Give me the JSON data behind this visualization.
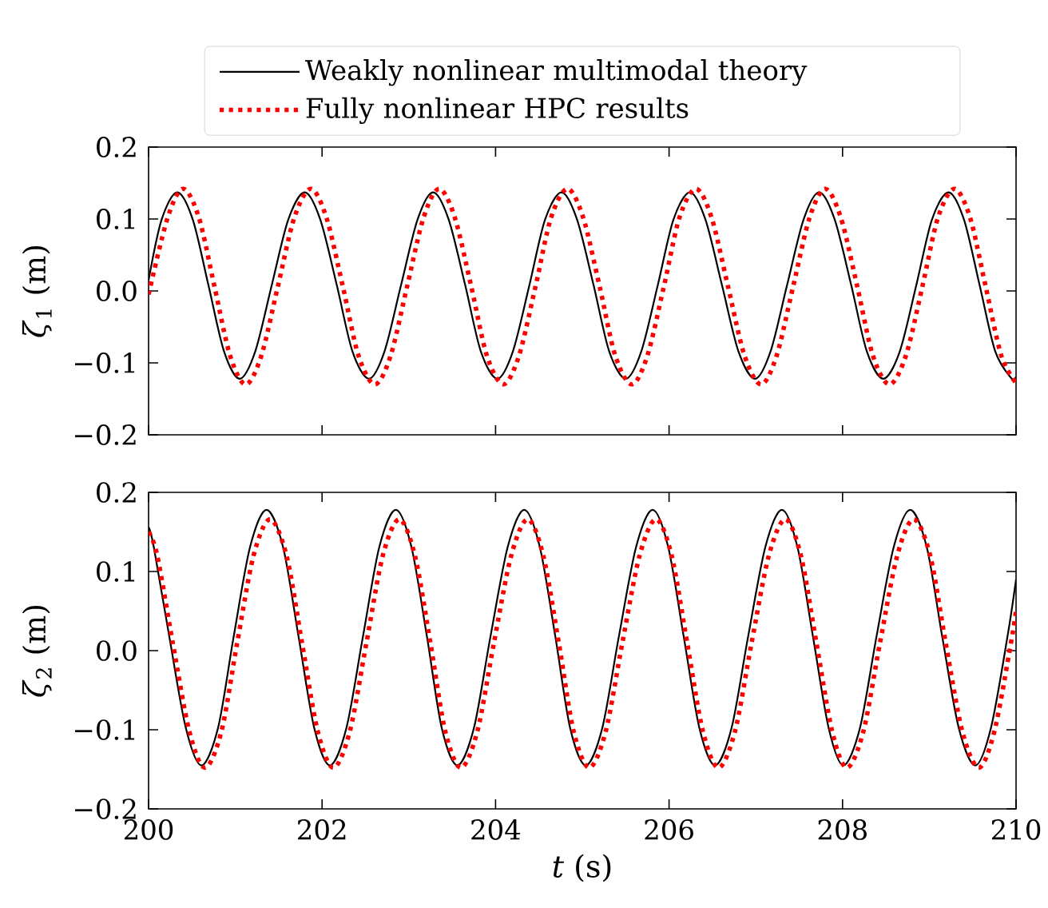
{
  "chart_data": [
    {
      "type": "line",
      "ylabel": "*ζ*$_{1}$ (m)",
      "xlim": [
        200,
        210
      ],
      "xticks": [
        200,
        202,
        204,
        206,
        208,
        210
      ],
      "ylim": [
        -0.2,
        0.2
      ],
      "yticks": [
        {
          "value": -0.2,
          "label": "−0.2"
        },
        {
          "value": -0.1,
          "label": "−0.1"
        },
        {
          "value": 0,
          "label": "0.0"
        },
        {
          "value": 0.1,
          "label": "0.1"
        },
        {
          "value": 0.2,
          "label": "0.2"
        }
      ],
      "tick_labels": "y",
      "legend": "top",
      "series": [
        {
          "name": "Weakly nonlinear multimodal theory",
          "color": "#000000",
          "line_style": "solid",
          "x": [
            200,
            200.15,
            200.33,
            200.51,
            200.69,
            200.87,
            201.05,
            201.23,
            201.42,
            201.61,
            201.8,
            201.98,
            202.17,
            202.35,
            202.54,
            202.72,
            202.91,
            203.1,
            203.28,
            203.46,
            203.65,
            203.83,
            204.02,
            204.2,
            204.39,
            204.57,
            204.76,
            204.94,
            205.13,
            205.31,
            205.5,
            205.68,
            205.87,
            206.05,
            206.24,
            206.42,
            206.61,
            206.8,
            206.99,
            207.17,
            207.36,
            207.55,
            207.73,
            207.91,
            208.1,
            208.28,
            208.47,
            208.66,
            208.85,
            209.03,
            209.22,
            209.4,
            209.58,
            209.76,
            209.95,
            210
          ],
          "values": [
            0.015,
            0.099,
            0.137,
            0.099,
            0.008,
            -0.084,
            -0.122,
            -0.084,
            0.008,
            0.099,
            0.137,
            0.099,
            0.008,
            -0.084,
            -0.122,
            -0.084,
            0.008,
            0.099,
            0.137,
            0.099,
            0.008,
            -0.084,
            -0.122,
            -0.084,
            0.008,
            0.099,
            0.137,
            0.099,
            0.008,
            -0.084,
            -0.122,
            -0.084,
            0.008,
            0.099,
            0.137,
            0.099,
            0.008,
            -0.084,
            -0.122,
            -0.084,
            0.008,
            0.099,
            0.137,
            0.099,
            0.008,
            -0.084,
            -0.122,
            -0.084,
            0.008,
            0.099,
            0.137,
            0.099,
            0.008,
            -0.084,
            -0.122,
            -0.119
          ]
        },
        {
          "name": "Fully nonlinear HPC results",
          "color": "#ff0000",
          "line_style": "dotted",
          "x": [
            200,
            200.22,
            200.4,
            200.58,
            200.76,
            200.94,
            201.12,
            201.3,
            201.49,
            201.68,
            201.87,
            202.05,
            202.24,
            202.42,
            202.61,
            202.79,
            202.98,
            203.17,
            203.35,
            203.53,
            203.72,
            203.9,
            204.09,
            204.27,
            204.46,
            204.64,
            204.83,
            205.01,
            205.2,
            205.38,
            205.57,
            205.75,
            205.94,
            206.12,
            206.31,
            206.49,
            206.68,
            206.87,
            207.06,
            207.24,
            207.43,
            207.62,
            207.8,
            207.98,
            208.17,
            208.35,
            208.54,
            208.73,
            208.92,
            209.1,
            209.29,
            209.47,
            209.65,
            209.83,
            210
          ],
          "values": [
            -0.005,
            0.102,
            0.142,
            0.102,
            0.006,
            -0.09,
            -0.13,
            -0.09,
            0.006,
            0.102,
            0.142,
            0.102,
            0.006,
            -0.09,
            -0.13,
            -0.09,
            0.006,
            0.102,
            0.142,
            0.102,
            0.006,
            -0.09,
            -0.13,
            -0.09,
            0.006,
            0.102,
            0.142,
            0.102,
            0.006,
            -0.09,
            -0.13,
            -0.09,
            0.006,
            0.102,
            0.142,
            0.102,
            0.006,
            -0.09,
            -0.13,
            -0.09,
            0.006,
            0.102,
            0.142,
            0.102,
            0.006,
            -0.09,
            -0.13,
            -0.09,
            0.006,
            0.102,
            0.142,
            0.102,
            0.006,
            -0.09,
            -0.128
          ]
        }
      ]
    },
    {
      "type": "line",
      "xlabel": "*t* (s)",
      "ylabel": "*ζ*$_{2}$ (m)",
      "xlim": [
        200,
        210
      ],
      "xticks": [
        200,
        202,
        204,
        206,
        208,
        210
      ],
      "ylim": [
        -0.2,
        0.2
      ],
      "yticks": [
        {
          "value": -0.2,
          "label": "−0.2"
        },
        {
          "value": -0.1,
          "label": "−0.1"
        },
        {
          "value": 0,
          "label": "0.0"
        },
        {
          "value": 0.1,
          "label": "0.1"
        },
        {
          "value": 0.2,
          "label": "0.2"
        }
      ],
      "series": [
        {
          "color": "#000000",
          "line_style": "solid",
          "x": [
            200,
            200.06,
            200.24,
            200.43,
            200.61,
            200.8,
            200.98,
            201.17,
            201.36,
            201.55,
            201.73,
            201.91,
            202.09,
            202.28,
            202.47,
            202.66,
            202.85,
            203.03,
            203.21,
            203.38,
            203.56,
            203.75,
            203.94,
            204.14,
            204.33,
            204.51,
            204.69,
            204.86,
            205.04,
            205.23,
            205.42,
            205.62,
            205.81,
            205.99,
            206.17,
            206.35,
            206.53,
            206.72,
            206.91,
            207.11,
            207.3,
            207.48,
            207.66,
            207.84,
            208.01,
            208.2,
            208.39,
            208.59,
            208.78,
            208.97,
            209.15,
            209.34,
            209.53,
            209.71,
            209.9,
            210
          ],
          "values": [
            0.156,
            0.131,
            0.017,
            -0.098,
            -0.145,
            -0.098,
            0.017,
            0.131,
            0.178,
            0.131,
            0.017,
            -0.098,
            -0.145,
            -0.098,
            0.017,
            0.131,
            0.178,
            0.131,
            0.017,
            -0.098,
            -0.145,
            -0.098,
            0.017,
            0.131,
            0.178,
            0.131,
            0.017,
            -0.098,
            -0.145,
            -0.098,
            0.017,
            0.131,
            0.178,
            0.131,
            0.017,
            -0.098,
            -0.145,
            -0.098,
            0.017,
            0.131,
            0.178,
            0.131,
            0.017,
            -0.098,
            -0.145,
            -0.098,
            0.017,
            0.131,
            0.178,
            0.131,
            0.017,
            -0.098,
            -0.145,
            -0.098,
            0.017,
            0.09
          ]
        },
        {
          "color": "#ff0000",
          "line_style": "dotted",
          "x": [
            200,
            200.1,
            200.28,
            200.47,
            200.65,
            200.84,
            201.02,
            201.21,
            201.4,
            201.59,
            201.77,
            201.95,
            202.13,
            202.32,
            202.51,
            202.7,
            202.89,
            203.07,
            203.25,
            203.42,
            203.6,
            203.79,
            203.98,
            204.18,
            204.37,
            204.55,
            204.73,
            204.9,
            205.08,
            205.27,
            205.46,
            205.66,
            205.85,
            206.03,
            206.21,
            206.39,
            206.57,
            206.76,
            206.95,
            207.15,
            207.34,
            207.52,
            207.7,
            207.88,
            208.05,
            208.24,
            208.43,
            208.63,
            208.82,
            209.01,
            209.19,
            209.38,
            209.57,
            209.75,
            209.94,
            210
          ],
          "values": [
            0.15,
            0.12,
            0.009,
            -0.102,
            -0.148,
            -0.102,
            0.009,
            0.12,
            0.166,
            0.12,
            0.009,
            -0.102,
            -0.148,
            -0.102,
            0.009,
            0.12,
            0.166,
            0.12,
            0.009,
            -0.102,
            -0.148,
            -0.102,
            0.009,
            0.12,
            0.166,
            0.12,
            0.009,
            -0.102,
            -0.148,
            -0.102,
            0.009,
            0.12,
            0.166,
            0.12,
            0.009,
            -0.102,
            -0.148,
            -0.102,
            0.009,
            0.12,
            0.166,
            0.12,
            0.009,
            -0.102,
            -0.148,
            -0.102,
            0.009,
            0.12,
            0.166,
            0.12,
            0.009,
            -0.102,
            -0.148,
            -0.102,
            0.009,
            0.05
          ]
        }
      ]
    }
  ]
}
